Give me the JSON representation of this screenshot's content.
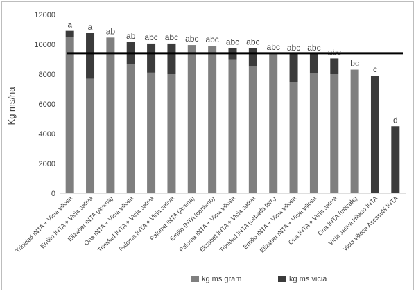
{
  "chart_data": {
    "type": "bar",
    "stacked": true,
    "ylabel": "Kg ms/ha",
    "ylim": [
      0,
      12000
    ],
    "yticks": [
      0,
      2000,
      4000,
      6000,
      8000,
      10000,
      12000
    ],
    "grid": false,
    "legend_position": "bottom",
    "reference_line": 9400,
    "categories": [
      "Trinidad INTA + Vicia villosa",
      "Emilio INTA + Vicia sativa",
      "Elizabet INTA (Avena)",
      "Ona INTA + Vicia villosa",
      "Trinidad INTA + Vicia sativa",
      "Paloma INTA + Vicia sativa",
      "Paloma INTA (Avena)",
      "Emilio INTA (centeno)",
      "Paloma INTA + Vicia villosa",
      "Elizabet INTA + Vicia sativa",
      "Trinidad INTA (cebada forr.)",
      "Emilio INTA + Vicia villosa",
      "Elizabet INTA + Vicia villosa",
      "Ona INTA + Vicia sativa",
      "Ona INTA (triticale)",
      "Vicia sativa Hilario INTA",
      "Vicia villosa Ascasubi INTA"
    ],
    "series": [
      {
        "name": "kg ms gram",
        "color": "#7f7f7f",
        "values": [
          10500,
          7700,
          10450,
          8650,
          8100,
          8000,
          9950,
          9900,
          9000,
          8500,
          9400,
          7450,
          8050,
          8000,
          8300,
          0,
          0
        ]
      },
      {
        "name": "kg ms vicia",
        "color": "#3b3b3b",
        "values": [
          400,
          3050,
          0,
          1500,
          1950,
          2050,
          0,
          0,
          750,
          1250,
          0,
          1900,
          1300,
          1050,
          0,
          7900,
          4500
        ]
      }
    ],
    "significance_letters": [
      "a",
      "a",
      "ab",
      "ab",
      "abc",
      "abc",
      "abc",
      "abc",
      "abc",
      "abc",
      "abc",
      "abc",
      "abc",
      "abc",
      "bc",
      "c",
      "d"
    ]
  }
}
